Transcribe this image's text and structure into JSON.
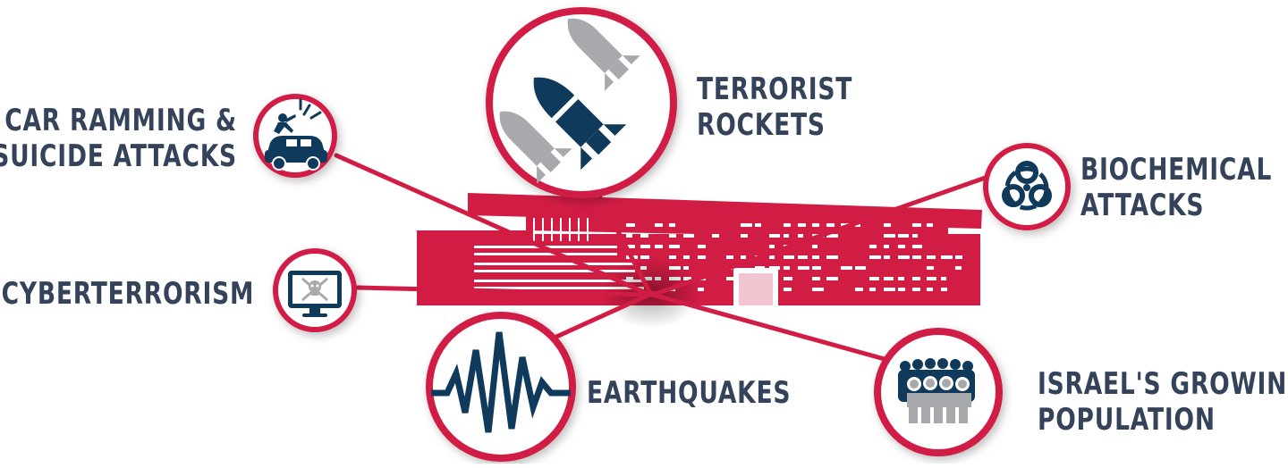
{
  "colors": {
    "accent": "#d11c44",
    "navy": "#0f3a5c",
    "gray": "#a7a9ac",
    "text": "#34435a"
  },
  "threats": [
    {
      "id": "car-ramming",
      "lines": [
        "CAR RAMMING &",
        "SUICIDE ATTACKS"
      ],
      "icon": "car-ramming-icon"
    },
    {
      "id": "terrorist-rockets",
      "lines": [
        "TERRORIST",
        "ROCKETS"
      ],
      "icon": "rockets-icon"
    },
    {
      "id": "biochemical",
      "lines": [
        "BIOCHEMICAL",
        "ATTACKS"
      ],
      "icon": "biohazard-icon"
    },
    {
      "id": "cyberterrorism",
      "lines": [
        "CYBERTERRORISM"
      ],
      "icon": "monitor-skull-icon"
    },
    {
      "id": "earthquakes",
      "lines": [
        "EARTHQUAKES"
      ],
      "icon": "seismograph-icon"
    },
    {
      "id": "population",
      "lines": [
        "ISRAEL'S GROWING",
        "POPULATION"
      ],
      "icon": "crowd-icon"
    }
  ]
}
